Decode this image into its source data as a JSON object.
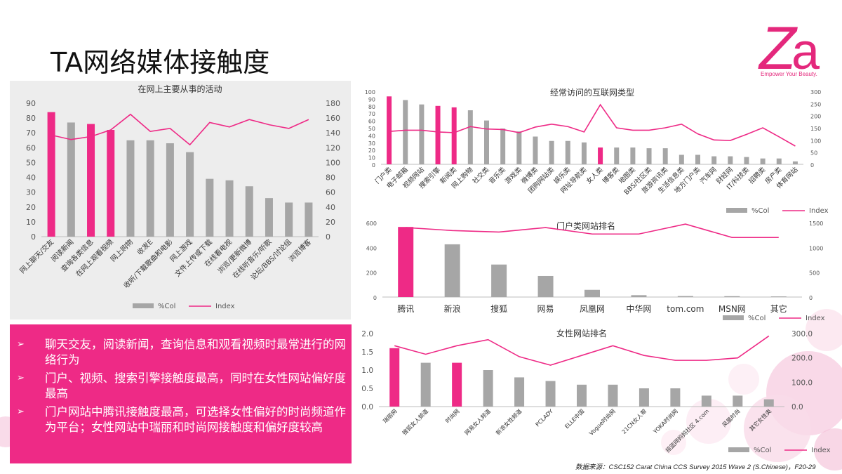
{
  "slide": {
    "title": "TA网络媒体接触度",
    "logo_tagline": "Empower Your Beauty.",
    "source": "数据来源：CSC152 Carat China CCS Survey 2015 Wave 2 (S.Chinese)，F20-29",
    "bullets": [
      "聊天交友，阅读新闻，查询信息和观看视频时最常进行的网络行为",
      "门户、视频、搜索引擎接触度最高，同时在女性网站偏好度最高",
      "门户网站中腾讯接触度最高，可选择女性偏好的时尚频道作为平台；女性网站中瑞丽和时尚网接触度和偏好度较高"
    ],
    "colors": {
      "accent": "#ee2a86",
      "bar": "#a6a6a6",
      "line": "#ee2a86"
    }
  },
  "chart_data": [
    {
      "type": "bar",
      "title": "在网上主要从事的活动",
      "categories": [
        "网上聊天/交友",
        "阅读新闻",
        "查询各类信息",
        "在网上观看视频",
        "网上购物",
        "收发E",
        "收听/下载歌曲和电影",
        "网上游戏",
        "文件上传或下载",
        "在线看电视",
        "浏览/更新微博",
        "在线听音乐/听歌",
        "论坛/BBS/讨论组",
        "浏览博客"
      ],
      "highlight": [
        0,
        2,
        3
      ],
      "series": [
        {
          "name": "%Col",
          "axis": "left",
          "values": [
            84,
            77,
            76,
            72,
            65,
            65,
            63,
            57,
            39,
            38,
            34,
            26,
            23,
            23
          ]
        },
        {
          "name": "Index",
          "axis": "right",
          "type": "line",
          "values": [
            137,
            131,
            135,
            144,
            165,
            142,
            146,
            124,
            154,
            148,
            158,
            151,
            146,
            158
          ]
        }
      ],
      "ylim": [
        0,
        90
      ],
      "yticks": [
        0,
        10,
        20,
        30,
        40,
        50,
        60,
        70,
        80,
        90
      ],
      "y2lim": [
        0,
        180
      ],
      "y2ticks": [
        0,
        20,
        40,
        60,
        80,
        100,
        120,
        140,
        160,
        180
      ],
      "legend": [
        "%Col",
        "Index"
      ]
    },
    {
      "type": "bar",
      "title": "经常访问的互联网类型",
      "categories": [
        "门户类",
        "电子邮箱",
        "视频网站",
        "搜索引擎",
        "新闻类",
        "网上购物",
        "社交类",
        "音乐类",
        "游戏类",
        "微博类",
        "团购网站类",
        "娱乐类",
        "网址导航类",
        "女人类",
        "博客类",
        "地图类",
        "BBS/社区类",
        "旅游资讯类",
        "生活信息类",
        "地方门户类",
        "汽车网",
        "财经网",
        "IT/科技类",
        "招聘类",
        "房产类",
        "体育网站"
      ],
      "highlight": [
        0,
        3,
        4,
        13
      ],
      "series": [
        {
          "name": "%Col",
          "axis": "left",
          "values": [
            93,
            88,
            82,
            80,
            78,
            74,
            60,
            49,
            45,
            38,
            32,
            32,
            30,
            23,
            23,
            23,
            22,
            22,
            13,
            13,
            11,
            11,
            10,
            8,
            8,
            4
          ]
        },
        {
          "name": "Index",
          "axis": "right",
          "type": "line",
          "values": [
            135,
            140,
            140,
            133,
            130,
            155,
            145,
            143,
            130,
            153,
            165,
            155,
            133,
            245,
            150,
            140,
            140,
            150,
            165,
            125,
            100,
            98,
            123,
            150,
            113,
            75
          ]
        }
      ],
      "ylim": [
        0,
        100
      ],
      "yticks": [
        0,
        10,
        20,
        30,
        40,
        50,
        60,
        70,
        80,
        90,
        100
      ],
      "y2lim": [
        0,
        300
      ],
      "y2ticks": [
        0,
        50,
        100,
        150,
        200,
        250,
        300
      ],
      "legend": [
        "%Col",
        "Index"
      ]
    },
    {
      "type": "bar",
      "title": "门户类网站排名",
      "categories": [
        "腾讯",
        "新浪",
        "搜狐",
        "网易",
        "凤凰网",
        "中华网",
        "tom.com",
        "MSN网",
        "其它"
      ],
      "highlight": [
        0
      ],
      "series": [
        {
          "name": "%Col",
          "axis": "left",
          "values": [
            565,
            425,
            262,
            170,
            58,
            15,
            8,
            7,
            5
          ]
        },
        {
          "name": "Index",
          "axis": "right",
          "type": "line",
          "values": [
            1400,
            1340,
            1310,
            1400,
            1270,
            1270,
            1470,
            1200,
            1200
          ]
        }
      ],
      "ylim": [
        0,
        600
      ],
      "yticks": [
        0,
        200,
        400,
        600
      ],
      "y2lim": [
        0,
        1500
      ],
      "y2ticks": [
        0,
        500,
        1000,
        1500
      ],
      "legend": [
        "%Col",
        "Index"
      ]
    },
    {
      "type": "bar",
      "title": "女性网站排名",
      "categories": [
        "瑞丽网",
        "搜狐女人频道",
        "时尚网",
        "网易女人频道",
        "新浪女性频道",
        "PCLADY",
        "ELLE中国",
        "Vogue时尚网",
        "21CN女人帮",
        "YOKA时尚网",
        "摇篮网妈妈社区 4.com",
        "凤凰时尚",
        "其它女性类"
      ],
      "highlight": [
        0,
        2
      ],
      "series": [
        {
          "name": "%Col",
          "axis": "left",
          "values": [
            1.6,
            1.2,
            1.2,
            1.0,
            0.8,
            0.7,
            0.6,
            0.6,
            0.5,
            0.5,
            0.3,
            0.3,
            0.2
          ]
        },
        {
          "name": "Index",
          "axis": "right",
          "type": "line",
          "values": [
            250,
            215,
            250,
            275,
            205,
            170,
            210,
            250,
            210,
            190,
            190,
            200,
            290
          ]
        }
      ],
      "ylim": [
        0,
        2.0
      ],
      "yticks": [
        "0.0",
        "0.5",
        "1.0",
        "1.5",
        "2.0"
      ],
      "y2lim": [
        0,
        300
      ],
      "y2ticks": [
        "0.0",
        "100.0",
        "200.0",
        "300.0"
      ],
      "legend": [
        "%Col",
        "Index"
      ]
    }
  ]
}
